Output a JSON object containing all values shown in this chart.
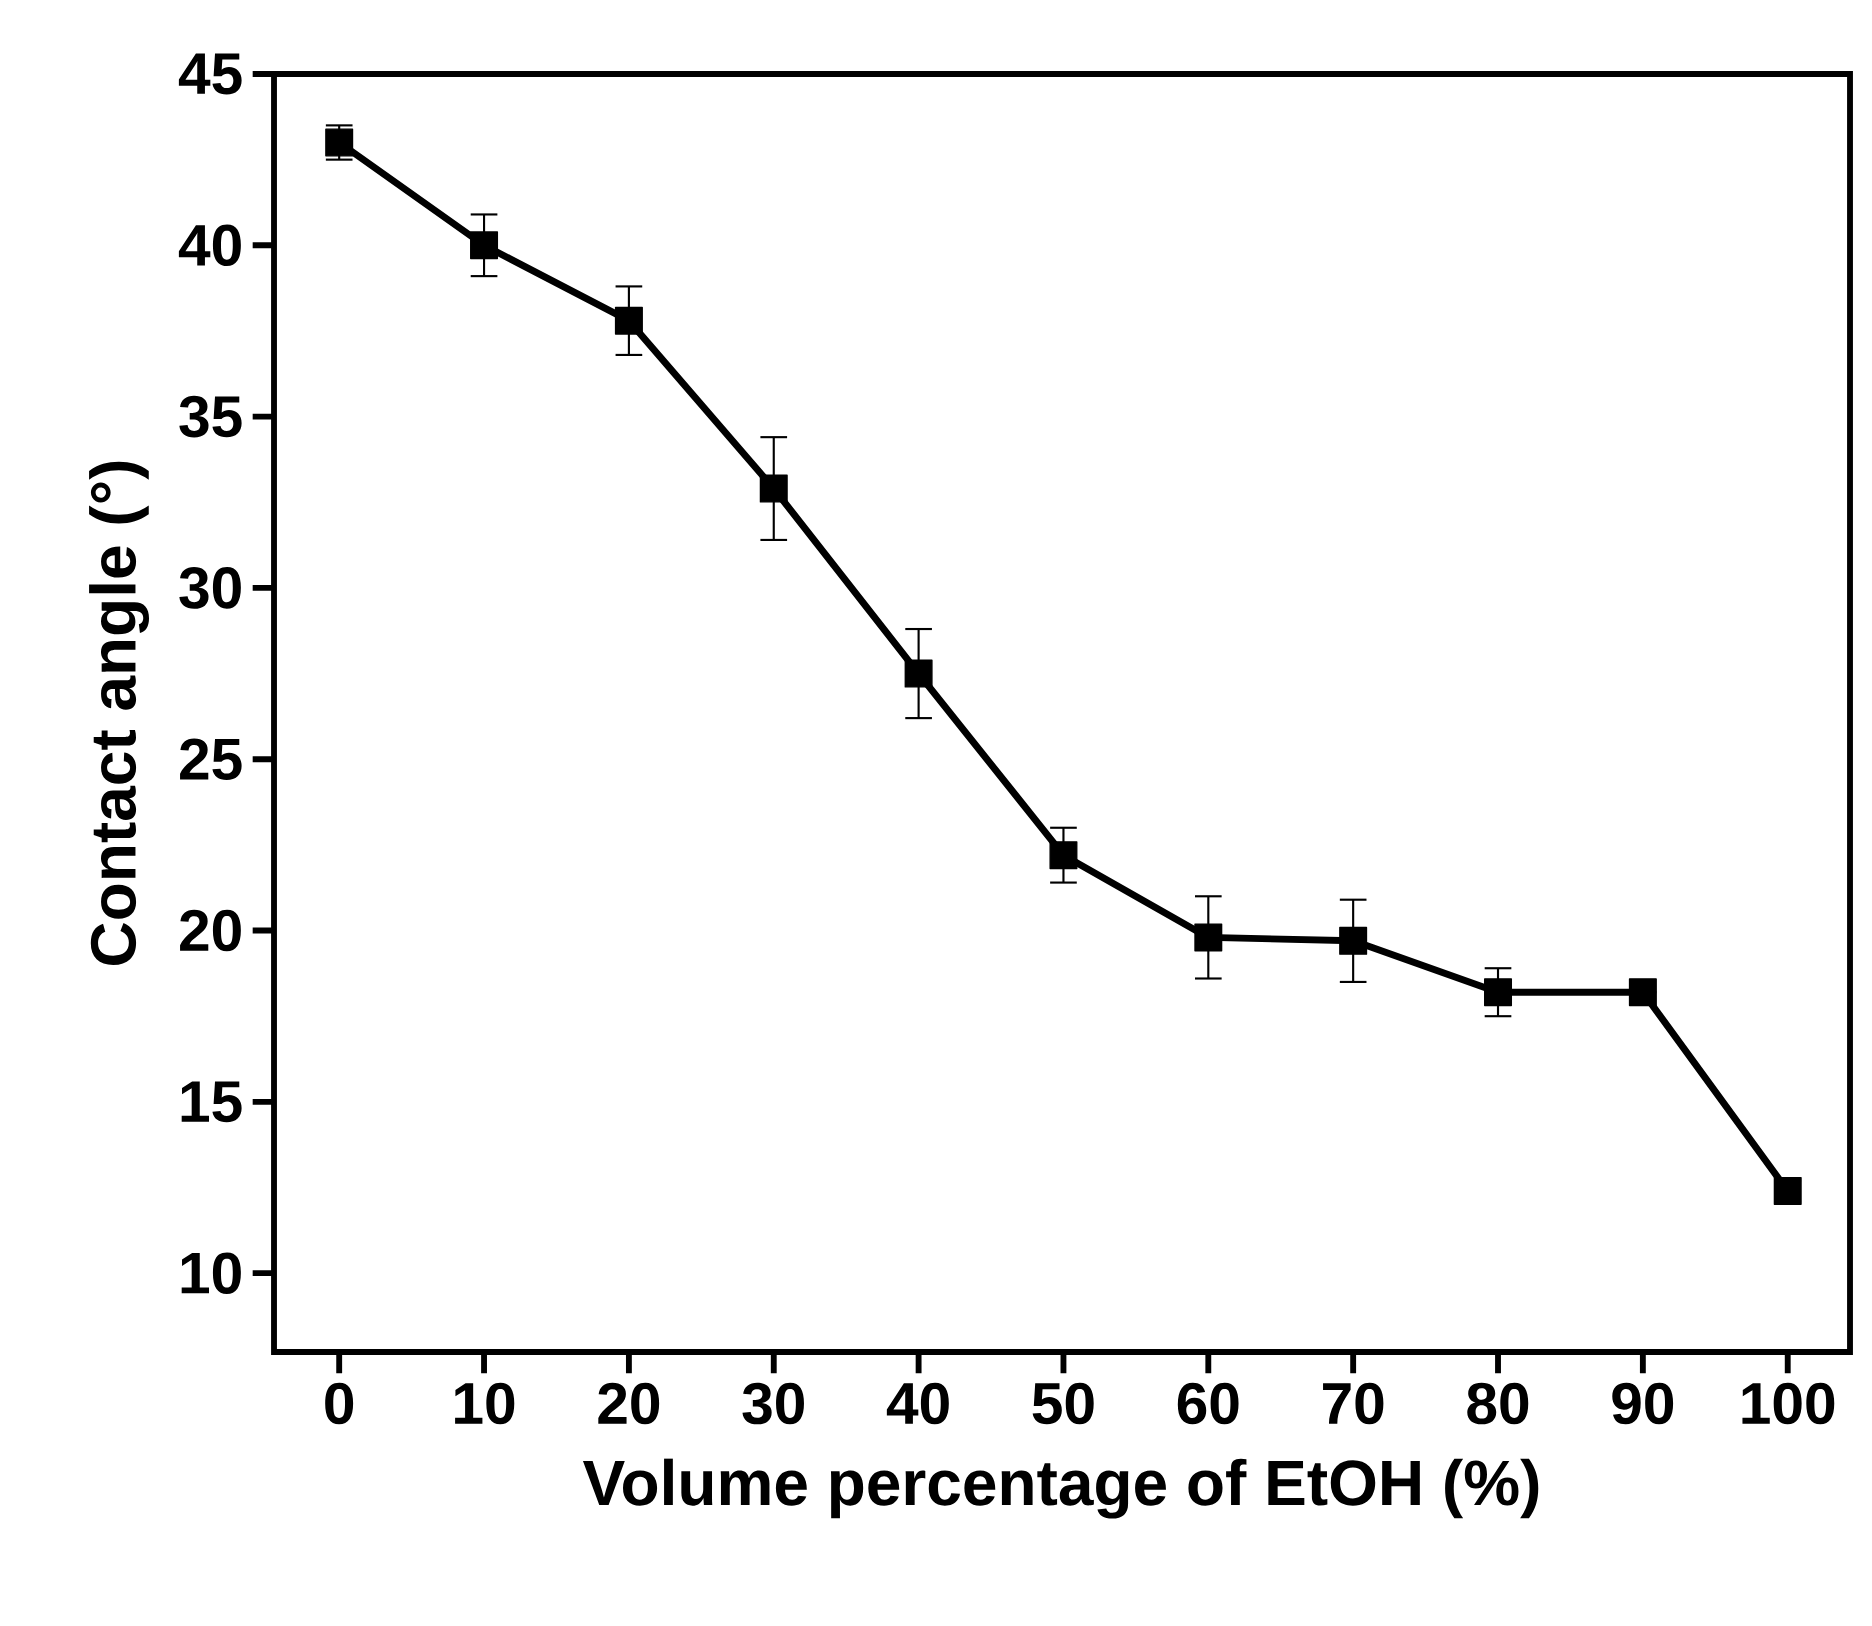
{
  "chart_data": {
    "type": "line",
    "xlabel": "Volume percentage of EtOH (%)",
    "ylabel": "Contact angle (°)",
    "x": [
      0,
      10,
      20,
      30,
      40,
      50,
      60,
      70,
      80,
      90,
      100
    ],
    "series": [
      {
        "color": "#000000",
        "values": [
          43.0,
          40.0,
          37.8,
          32.9,
          27.5,
          22.2,
          19.8,
          19.7,
          18.2,
          18.2,
          12.4
        ],
        "errors": [
          0.5,
          0.9,
          1.0,
          1.5,
          1.3,
          0.8,
          1.2,
          1.2,
          0.7,
          null,
          0.3
        ]
      }
    ],
    "xlim": [
      -4.5,
      104.3
    ],
    "ylim": [
      7.7,
      45
    ],
    "xticks": [
      0,
      10,
      20,
      30,
      40,
      50,
      60,
      70,
      80,
      90,
      100
    ],
    "yticks": [
      10,
      15,
      20,
      25,
      30,
      35,
      40,
      45
    ],
    "marker": "square",
    "line_style": "solid"
  }
}
